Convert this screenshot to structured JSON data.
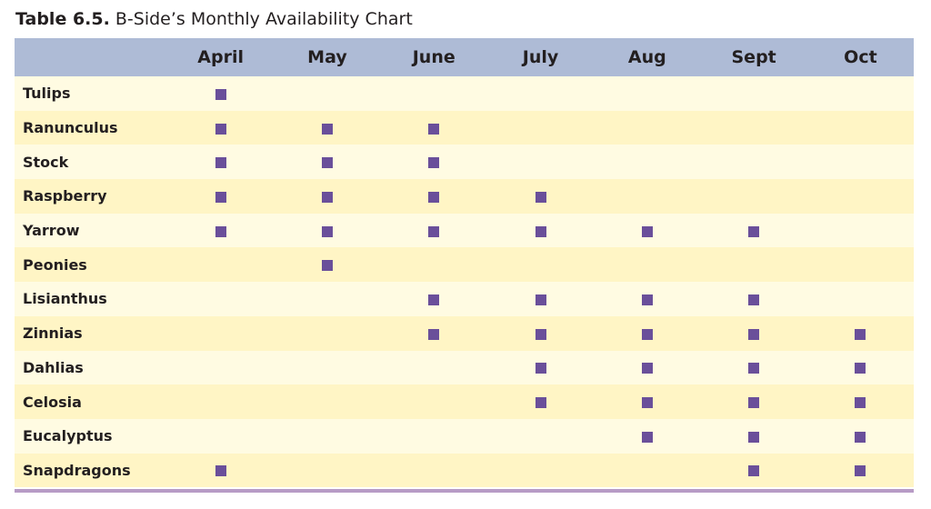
{
  "caption": {
    "number": "Table 6.5.",
    "title": "B-Side’s Monthly Availability Chart"
  },
  "months": [
    "April",
    "May",
    "June",
    "July",
    "Aug",
    "Sept",
    "Oct"
  ],
  "rows": [
    {
      "name": "Tulips",
      "available": [
        true,
        false,
        false,
        false,
        false,
        false,
        false
      ]
    },
    {
      "name": "Ranunculus",
      "available": [
        true,
        true,
        true,
        false,
        false,
        false,
        false
      ]
    },
    {
      "name": "Stock",
      "available": [
        true,
        true,
        true,
        false,
        false,
        false,
        false
      ]
    },
    {
      "name": "Raspberry",
      "available": [
        true,
        true,
        true,
        true,
        false,
        false,
        false
      ]
    },
    {
      "name": "Yarrow",
      "available": [
        true,
        true,
        true,
        true,
        true,
        true,
        false
      ]
    },
    {
      "name": "Peonies",
      "available": [
        false,
        true,
        false,
        false,
        false,
        false,
        false
      ]
    },
    {
      "name": "Lisianthus",
      "available": [
        false,
        false,
        true,
        true,
        true,
        true,
        false
      ]
    },
    {
      "name": "Zinnias",
      "available": [
        false,
        false,
        true,
        true,
        true,
        true,
        true
      ]
    },
    {
      "name": "Dahlias",
      "available": [
        false,
        false,
        false,
        true,
        true,
        true,
        true
      ]
    },
    {
      "name": "Celosia",
      "available": [
        false,
        false,
        false,
        true,
        true,
        true,
        true
      ]
    },
    {
      "name": "Eucalyptus",
      "available": [
        false,
        false,
        false,
        false,
        true,
        true,
        true
      ]
    },
    {
      "name": "Snapdragons",
      "available": [
        true,
        false,
        false,
        false,
        false,
        true,
        true
      ]
    }
  ],
  "colors": {
    "header_bg": "#aebbd6",
    "row_light": "#fffbe2",
    "row_dark": "#fff5c5",
    "marker": "#6a4f9a",
    "bottom_rule": "#b79bc6"
  },
  "icons": {
    "availability_marker": "square-marker-icon"
  }
}
